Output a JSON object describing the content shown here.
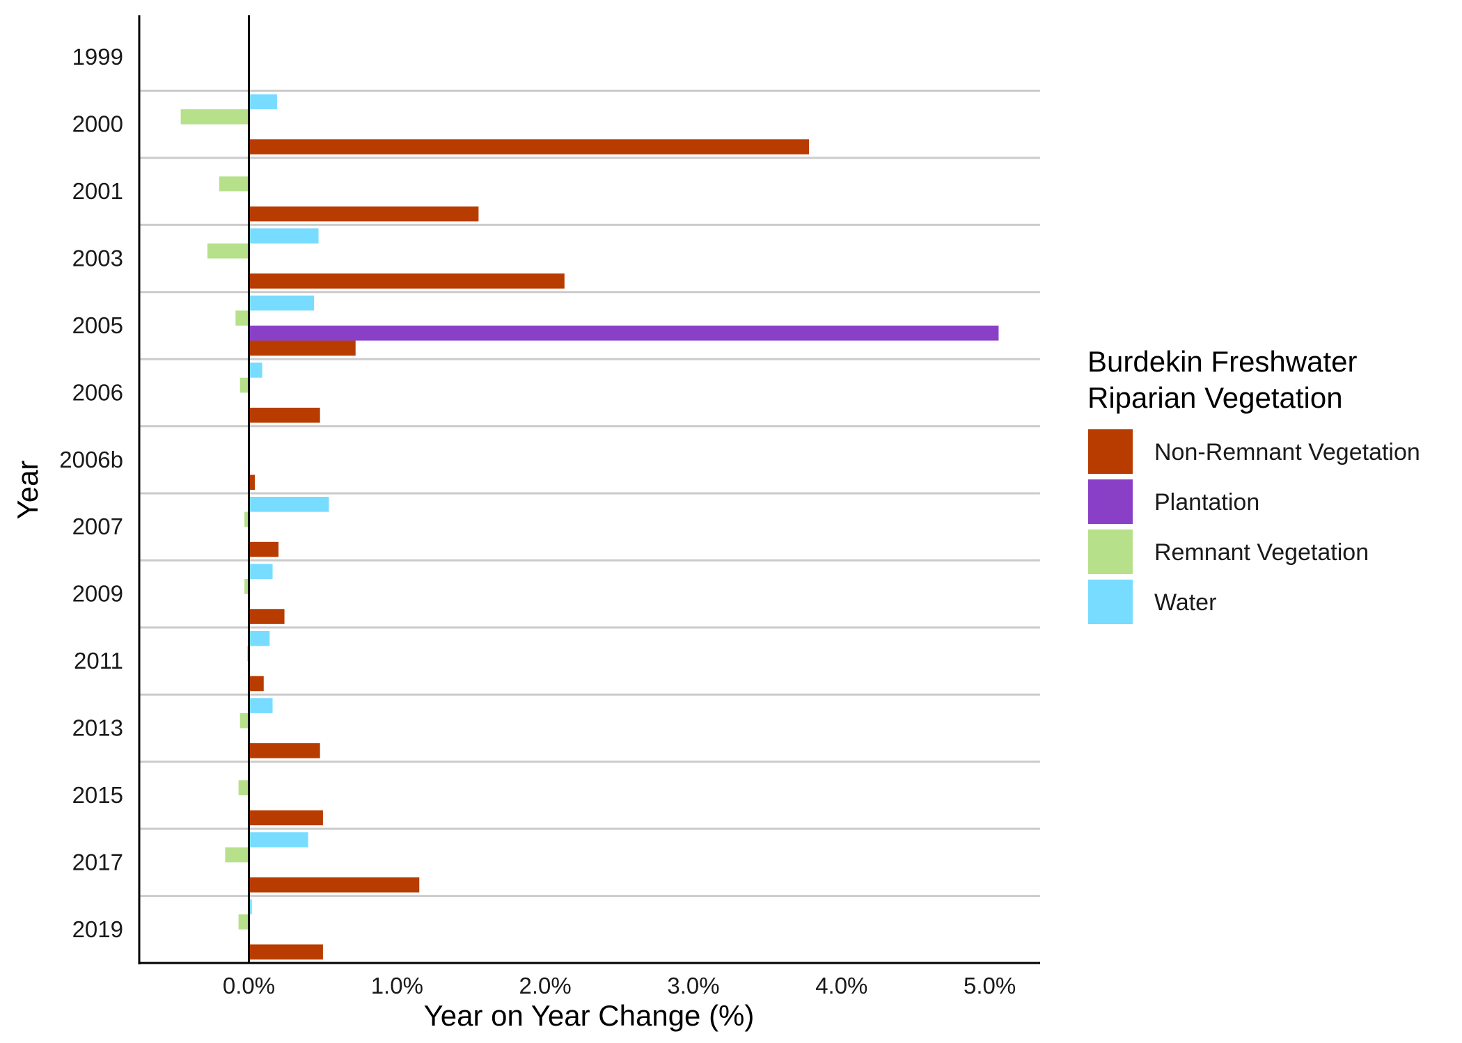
{
  "chart_data": {
    "type": "bar",
    "orientation": "horizontal",
    "xlabel": "Year on Year Change (%)",
    "ylabel": "Year",
    "xlim": [
      -0.74,
      5.34
    ],
    "x_ticks": [
      0,
      1,
      2,
      3,
      4,
      5
    ],
    "x_tick_labels": [
      "0.0%",
      "1.0%",
      "2.0%",
      "3.0%",
      "4.0%",
      "5.0%"
    ],
    "categories": [
      "1999",
      "2000",
      "2001",
      "2003",
      "2005",
      "2006",
      "2006b",
      "2007",
      "2009",
      "2011",
      "2013",
      "2015",
      "2017",
      "2019"
    ],
    "legend": {
      "title_line1": "Burdekin Freshwater",
      "title_line2": "Riparian Vegetation",
      "placement": "right"
    },
    "series": [
      {
        "name": "Non-Remnant Vegetation",
        "color": "#B83C00",
        "values": [
          null,
          3.78,
          1.55,
          2.13,
          0.72,
          0.48,
          0.04,
          0.2,
          0.24,
          0.1,
          0.48,
          0.5,
          1.15,
          0.5
        ]
      },
      {
        "name": "Plantation",
        "color": "#8A3FC7",
        "values": [
          null,
          null,
          null,
          null,
          5.06,
          null,
          null,
          null,
          null,
          null,
          null,
          null,
          null,
          null
        ]
      },
      {
        "name": "Remnant Vegetation",
        "color": "#B7E08B",
        "values": [
          null,
          -0.46,
          -0.2,
          -0.28,
          -0.09,
          -0.06,
          null,
          -0.03,
          -0.03,
          -0.01,
          -0.06,
          -0.07,
          -0.16,
          -0.07
        ]
      },
      {
        "name": "Water",
        "color": "#77DCFF",
        "values": [
          null,
          0.19,
          null,
          0.47,
          0.44,
          0.09,
          null,
          0.54,
          0.16,
          0.14,
          0.16,
          null,
          0.4,
          0.02
        ]
      }
    ],
    "grid": {
      "major_y": true,
      "major_x": false
    },
    "colors": {
      "gridline": "#CBCBCB",
      "axis": "#000000",
      "zero_line": "#000000"
    }
  }
}
